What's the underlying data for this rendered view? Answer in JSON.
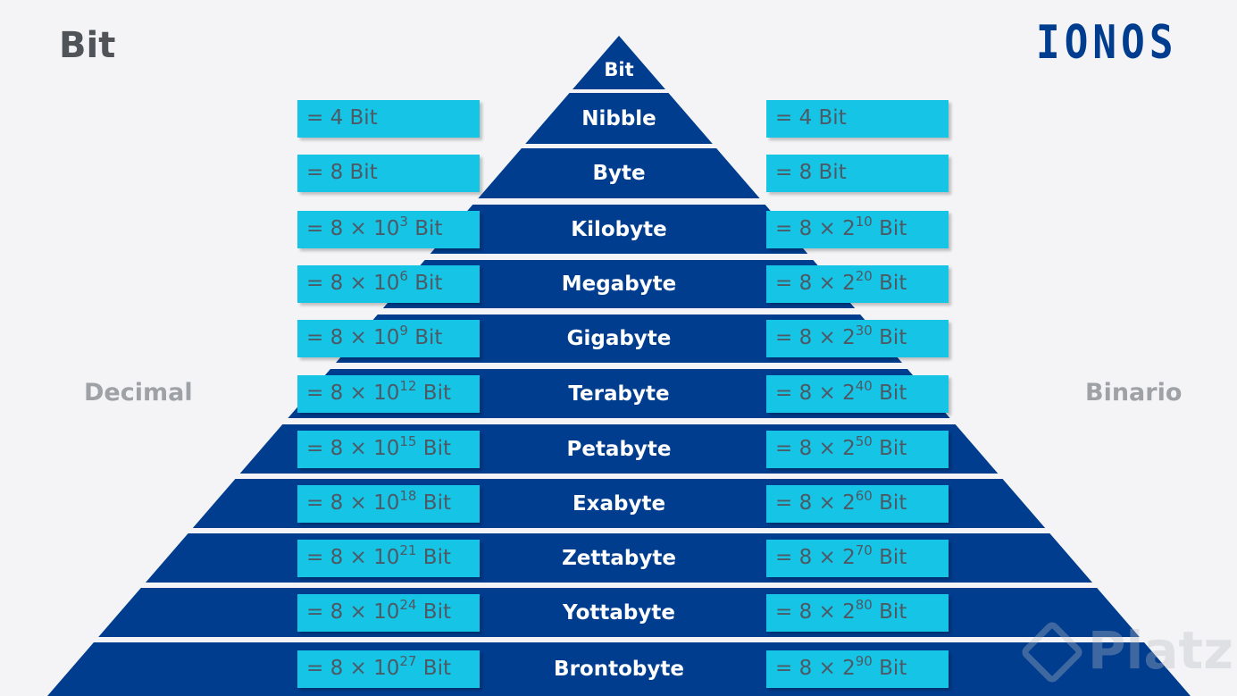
{
  "title": "Bit",
  "logo_text": "IONOS",
  "left_axis_label": "Decimal",
  "right_axis_label": "Binario",
  "watermark_text": "Platzi",
  "colors": {
    "pyramid": "#003d8f",
    "box": "#16c5e6",
    "box_text": "#4d5965",
    "background": "#f4f4f6"
  },
  "levels": [
    {
      "name": "Bit",
      "decimal": null,
      "binary": null
    },
    {
      "name": "Nibble",
      "decimal": {
        "base": "= 4 Bit"
      },
      "binary": {
        "base": "= 4 Bit"
      }
    },
    {
      "name": "Byte",
      "decimal": {
        "base": "= 8 Bit"
      },
      "binary": {
        "base": "= 8 Bit"
      }
    },
    {
      "name": "Kilobyte",
      "decimal": {
        "base": "= 8 × 10",
        "exp": "3",
        "unit": " Bit"
      },
      "binary": {
        "base": "= 8 × 2",
        "exp": "10",
        "unit": " Bit"
      }
    },
    {
      "name": "Megabyte",
      "decimal": {
        "base": "= 8 × 10",
        "exp": "6",
        "unit": " Bit"
      },
      "binary": {
        "base": "= 8 × 2",
        "exp": "20",
        "unit": " Bit"
      }
    },
    {
      "name": "Gigabyte",
      "decimal": {
        "base": "= 8 × 10",
        "exp": "9",
        "unit": " Bit"
      },
      "binary": {
        "base": "= 8 × 2",
        "exp": "30",
        "unit": " Bit"
      }
    },
    {
      "name": "Terabyte",
      "decimal": {
        "base": "= 8 × 10",
        "exp": "12",
        "unit": " Bit"
      },
      "binary": {
        "base": "= 8 × 2",
        "exp": "40",
        "unit": " Bit"
      }
    },
    {
      "name": "Petabyte",
      "decimal": {
        "base": "= 8 × 10",
        "exp": "15",
        "unit": " Bit"
      },
      "binary": {
        "base": "= 8 × 2",
        "exp": "50",
        "unit": " Bit"
      }
    },
    {
      "name": "Exabyte",
      "decimal": {
        "base": "= 8 × 10",
        "exp": "18",
        "unit": " Bit"
      },
      "binary": {
        "base": "= 8 × 2",
        "exp": "60",
        "unit": " Bit"
      }
    },
    {
      "name": "Zettabyte",
      "decimal": {
        "base": "= 8 × 10",
        "exp": "21",
        "unit": " Bit"
      },
      "binary": {
        "base": "= 8 × 2",
        "exp": "70",
        "unit": " Bit"
      }
    },
    {
      "name": "Yottabyte",
      "decimal": {
        "base": "= 8 × 10",
        "exp": "24",
        "unit": " Bit"
      },
      "binary": {
        "base": "= 8 × 2",
        "exp": "80",
        "unit": " Bit"
      }
    },
    {
      "name": "Brontobyte",
      "decimal": {
        "base": "= 8 × 10",
        "exp": "27",
        "unit": " Bit"
      },
      "binary": {
        "base": "= 8 × 2",
        "exp": "90",
        "unit": " Bit"
      }
    }
  ]
}
